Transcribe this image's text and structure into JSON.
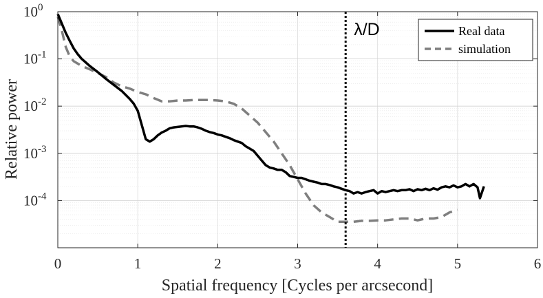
{
  "chart_data": {
    "type": "line",
    "xlabel": "Spatial frequency [Cycles per arcsecond]",
    "ylabel": "Relative power",
    "xlim": [
      0,
      6
    ],
    "ylim_log10": [
      -5,
      0
    ],
    "yscale": "log",
    "grid": true,
    "minor_grid": true,
    "legend_position": "top-right",
    "x_ticks": [
      0,
      1,
      2,
      3,
      4,
      5,
      6
    ],
    "x_tick_labels": [
      "0",
      "1",
      "2",
      "3",
      "4",
      "5",
      "6"
    ],
    "y_ticks_exp": [
      0,
      -1,
      -2,
      -3,
      -4
    ],
    "y_tick_base": "10",
    "y_tick_exps": [
      "0",
      "-1",
      "-2",
      "-3",
      "-4"
    ],
    "annotation": {
      "text": "λ/D",
      "x": 3.6
    },
    "series": [
      {
        "name": "Real data",
        "style": "solid",
        "color": "#000000",
        "x": [
          0.0,
          0.05,
          0.1,
          0.15,
          0.2,
          0.25,
          0.3,
          0.4,
          0.5,
          0.6,
          0.7,
          0.8,
          0.9,
          0.95,
          1.0,
          1.05,
          1.1,
          1.15,
          1.2,
          1.25,
          1.3,
          1.35,
          1.4,
          1.45,
          1.5,
          1.55,
          1.6,
          1.65,
          1.7,
          1.75,
          1.8,
          1.85,
          1.9,
          1.95,
          2.0,
          2.05,
          2.1,
          2.15,
          2.2,
          2.25,
          2.3,
          2.35,
          2.4,
          2.45,
          2.5,
          2.55,
          2.6,
          2.65,
          2.7,
          2.75,
          2.8,
          2.85,
          2.9,
          2.95,
          3.0,
          3.05,
          3.1,
          3.15,
          3.2,
          3.25,
          3.3,
          3.35,
          3.4,
          3.45,
          3.5,
          3.55,
          3.6,
          3.65,
          3.7,
          3.75,
          3.8,
          3.85,
          3.9,
          3.95,
          4.0,
          4.05,
          4.1,
          4.15,
          4.2,
          4.25,
          4.3,
          4.35,
          4.4,
          4.45,
          4.5,
          4.55,
          4.6,
          4.65,
          4.7,
          4.75,
          4.8,
          4.85,
          4.9,
          4.95,
          5.0,
          5.05,
          5.1,
          5.15,
          5.2,
          5.25,
          5.28,
          5.33
        ],
        "y_log10": [
          -0.05,
          -0.25,
          -0.45,
          -0.62,
          -0.78,
          -0.9,
          -1.0,
          -1.15,
          -1.28,
          -1.42,
          -1.55,
          -1.68,
          -1.85,
          -1.95,
          -2.1,
          -2.4,
          -2.7,
          -2.75,
          -2.7,
          -2.62,
          -2.56,
          -2.52,
          -2.47,
          -2.45,
          -2.44,
          -2.43,
          -2.42,
          -2.43,
          -2.43,
          -2.45,
          -2.48,
          -2.52,
          -2.55,
          -2.57,
          -2.6,
          -2.62,
          -2.65,
          -2.68,
          -2.72,
          -2.75,
          -2.78,
          -2.85,
          -2.9,
          -2.95,
          -3.05,
          -3.15,
          -3.25,
          -3.3,
          -3.32,
          -3.35,
          -3.35,
          -3.4,
          -3.48,
          -3.5,
          -3.52,
          -3.52,
          -3.55,
          -3.58,
          -3.6,
          -3.62,
          -3.65,
          -3.65,
          -3.67,
          -3.7,
          -3.72,
          -3.75,
          -3.78,
          -3.8,
          -3.85,
          -3.82,
          -3.85,
          -3.82,
          -3.8,
          -3.78,
          -3.85,
          -3.8,
          -3.82,
          -3.8,
          -3.78,
          -3.8,
          -3.78,
          -3.78,
          -3.76,
          -3.8,
          -3.76,
          -3.78,
          -3.75,
          -3.78,
          -3.74,
          -3.77,
          -3.72,
          -3.7,
          -3.72,
          -3.68,
          -3.72,
          -3.7,
          -3.65,
          -3.7,
          -3.65,
          -3.72,
          -3.95,
          -3.7
        ]
      },
      {
        "name": "simulation",
        "style": "dashed",
        "color": "#7f7f7f",
        "x": [
          0.0,
          0.05,
          0.1,
          0.15,
          0.2,
          0.3,
          0.4,
          0.5,
          0.6,
          0.7,
          0.8,
          0.9,
          1.0,
          1.1,
          1.2,
          1.3,
          1.4,
          1.5,
          1.6,
          1.7,
          1.8,
          1.9,
          2.0,
          2.1,
          2.2,
          2.3,
          2.4,
          2.5,
          2.6,
          2.7,
          2.8,
          2.9,
          3.0,
          3.1,
          3.2,
          3.3,
          3.4,
          3.5,
          3.6,
          3.7,
          3.8,
          3.9,
          4.0,
          4.1,
          4.2,
          4.3,
          4.4,
          4.5,
          4.6,
          4.7,
          4.8,
          4.9,
          5.0
        ],
        "y_log10": [
          -0.1,
          -0.4,
          -0.75,
          -0.95,
          -1.05,
          -1.15,
          -1.22,
          -1.3,
          -1.38,
          -1.5,
          -1.58,
          -1.63,
          -1.7,
          -1.75,
          -1.83,
          -1.9,
          -1.9,
          -1.88,
          -1.88,
          -1.87,
          -1.87,
          -1.87,
          -1.88,
          -1.9,
          -1.95,
          -2.05,
          -2.2,
          -2.35,
          -2.55,
          -2.75,
          -3.0,
          -3.25,
          -3.55,
          -3.85,
          -4.1,
          -4.25,
          -4.35,
          -4.45,
          -4.45,
          -4.45,
          -4.43,
          -4.43,
          -4.42,
          -4.42,
          -4.4,
          -4.38,
          -4.38,
          -4.42,
          -4.38,
          -4.38,
          -4.35,
          -4.25,
          -4.2
        ]
      }
    ]
  }
}
